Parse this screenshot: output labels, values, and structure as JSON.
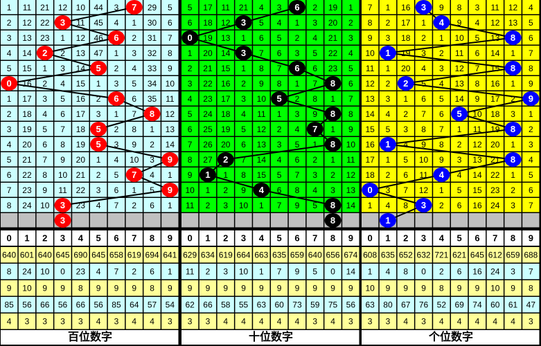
{
  "chart_data": {
    "type": "table",
    "digits": [
      "0",
      "1",
      "2",
      "3",
      "4",
      "5",
      "6",
      "7",
      "8",
      "9"
    ],
    "colors": {
      "gray_row": "#c0c0c0",
      "stat_yellow": "#ffff99",
      "stat_cyan": "#ccffff",
      "header_bg": "#ffffff",
      "line": "#000000"
    },
    "panels": [
      {
        "label": "百位数字",
        "bg": "#ccffff",
        "ball_color": "#ff0000",
        "rows": [
          {
            "cells": [
              "1",
              "11",
              "21",
              "12",
              "10",
              "44",
              "3",
              "",
              "29",
              "5"
            ],
            "ball": 7
          },
          {
            "cells": [
              "2",
              "12",
              "22",
              "",
              "11",
              "45",
              "4",
              "1",
              "30",
              "6"
            ],
            "ball": 3
          },
          {
            "cells": [
              "3",
              "13",
              "23",
              "1",
              "12",
              "46",
              "",
              "2",
              "31",
              "7"
            ],
            "ball": 6
          },
          {
            "cells": [
              "4",
              "14",
              "",
              "2",
              "13",
              "47",
              "1",
              "3",
              "32",
              "8"
            ],
            "ball": 2
          },
          {
            "cells": [
              "5",
              "15",
              "1",
              "3",
              "14",
              "",
              "2",
              "4",
              "33",
              "9"
            ],
            "ball": 5
          },
          {
            "cells": [
              "",
              "16",
              "2",
              "4",
              "15",
              "1",
              "3",
              "5",
              "34",
              "10"
            ],
            "ball": 0
          },
          {
            "cells": [
              "1",
              "17",
              "3",
              "5",
              "16",
              "2",
              "",
              "6",
              "35",
              "11"
            ],
            "ball": 6
          },
          {
            "cells": [
              "2",
              "18",
              "4",
              "6",
              "17",
              "3",
              "1",
              "7",
              "",
              "12"
            ],
            "ball": 8
          },
          {
            "cells": [
              "3",
              "19",
              "5",
              "7",
              "18",
              "",
              "2",
              "8",
              "1",
              "13"
            ],
            "ball": 5
          },
          {
            "cells": [
              "4",
              "20",
              "6",
              "8",
              "19",
              "",
              "3",
              "9",
              "2",
              "14"
            ],
            "ball": 5
          },
          {
            "cells": [
              "5",
              "21",
              "7",
              "9",
              "20",
              "1",
              "4",
              "10",
              "3",
              ""
            ],
            "ball": 9
          },
          {
            "cells": [
              "6",
              "22",
              "8",
              "10",
              "21",
              "2",
              "5",
              "",
              "4",
              "1"
            ],
            "ball": 7
          },
          {
            "cells": [
              "7",
              "23",
              "9",
              "11",
              "22",
              "3",
              "6",
              "1",
              "5",
              ""
            ],
            "ball": 9
          },
          {
            "cells": [
              "8",
              "24",
              "10",
              "",
              "23",
              "4",
              "7",
              "2",
              "6",
              "1"
            ],
            "ball": 3
          },
          {
            "cells": [
              "",
              "",
              "",
              "",
              "",
              "",
              "",
              "",
              "",
              ""
            ],
            "ball": 3
          }
        ],
        "stats": [
          [
            "640",
            "601",
            "640",
            "645",
            "690",
            "645",
            "658",
            "619",
            "694",
            "641"
          ],
          [
            "8",
            "24",
            "10",
            "0",
            "23",
            "4",
            "7",
            "2",
            "6",
            "1"
          ],
          [
            "9",
            "10",
            "9",
            "9",
            "8",
            "9",
            "9",
            "9",
            "8",
            "9"
          ],
          [
            "85",
            "56",
            "66",
            "56",
            "66",
            "56",
            "85",
            "64",
            "57",
            "54"
          ],
          [
            "4",
            "3",
            "3",
            "3",
            "3",
            "4",
            "3",
            "4",
            "4",
            "3"
          ]
        ]
      },
      {
        "label": "十位数字",
        "bg": "#00ff00",
        "ball_color": "#000000",
        "rows": [
          {
            "cells": [
              "5",
              "17",
              "11",
              "21",
              "4",
              "3",
              "",
              "2",
              "19",
              "1"
            ],
            "ball": 6
          },
          {
            "cells": [
              "6",
              "18",
              "12",
              "",
              "5",
              "4",
              "1",
              "3",
              "20",
              "2"
            ],
            "ball": 3
          },
          {
            "cells": [
              "",
              "19",
              "13",
              "1",
              "6",
              "5",
              "2",
              "4",
              "21",
              "3"
            ],
            "ball": 0
          },
          {
            "cells": [
              "1",
              "20",
              "14",
              "",
              "7",
              "6",
              "3",
              "5",
              "22",
              "4"
            ],
            "ball": 3
          },
          {
            "cells": [
              "2",
              "21",
              "15",
              "1",
              "8",
              "7",
              "",
              "6",
              "23",
              "5"
            ],
            "ball": 6
          },
          {
            "cells": [
              "3",
              "22",
              "16",
              "2",
              "9",
              "8",
              "1",
              "7",
              "",
              "6"
            ],
            "ball": 8
          },
          {
            "cells": [
              "4",
              "23",
              "17",
              "3",
              "10",
              "",
              "2",
              "8",
              "1",
              "7"
            ],
            "ball": 5
          },
          {
            "cells": [
              "5",
              "24",
              "18",
              "4",
              "11",
              "1",
              "3",
              "9",
              "",
              "8"
            ],
            "ball": 8
          },
          {
            "cells": [
              "6",
              "25",
              "19",
              "5",
              "12",
              "2",
              "4",
              "",
              "1",
              "9"
            ],
            "ball": 7
          },
          {
            "cells": [
              "7",
              "26",
              "20",
              "6",
              "13",
              "3",
              "5",
              "1",
              "",
              "10"
            ],
            "ball": 8
          },
          {
            "cells": [
              "8",
              "27",
              "",
              "7",
              "14",
              "4",
              "6",
              "2",
              "1",
              "11"
            ],
            "ball": 2
          },
          {
            "cells": [
              "9",
              "",
              "1",
              "8",
              "15",
              "5",
              "7",
              "3",
              "2",
              "12"
            ],
            "ball": 1
          },
          {
            "cells": [
              "10",
              "1",
              "2",
              "9",
              "",
              "6",
              "8",
              "4",
              "3",
              "13"
            ],
            "ball": 4
          },
          {
            "cells": [
              "11",
              "2",
              "3",
              "10",
              "1",
              "7",
              "9",
              "5",
              "",
              "14"
            ],
            "ball": 8
          },
          {
            "cells": [
              "",
              "",
              "",
              "",
              "",
              "",
              "",
              "",
              "",
              ""
            ],
            "ball": 8
          }
        ],
        "stats": [
          [
            "629",
            "634",
            "619",
            "664",
            "663",
            "635",
            "659",
            "640",
            "656",
            "674"
          ],
          [
            "11",
            "2",
            "3",
            "10",
            "1",
            "7",
            "9",
            "5",
            "0",
            "14"
          ],
          [
            "9",
            "9",
            "9",
            "9",
            "9",
            "9",
            "9",
            "9",
            "9",
            "9"
          ],
          [
            "62",
            "66",
            "58",
            "55",
            "63",
            "60",
            "73",
            "59",
            "75",
            "56"
          ],
          [
            "3",
            "3",
            "4",
            "4",
            "4",
            "4",
            "4",
            "3",
            "4",
            "3"
          ]
        ]
      },
      {
        "label": "个位数字",
        "bg": "#ffff00",
        "ball_color": "#0000ff",
        "rows": [
          {
            "cells": [
              "7",
              "1",
              "16",
              "",
              "9",
              "8",
              "3",
              "11",
              "12",
              "4"
            ],
            "ball": 3
          },
          {
            "cells": [
              "8",
              "2",
              "17",
              "1",
              "",
              "9",
              "4",
              "12",
              "13",
              "5"
            ],
            "ball": 4
          },
          {
            "cells": [
              "9",
              "3",
              "18",
              "2",
              "1",
              "10",
              "5",
              "13",
              "",
              "6"
            ],
            "ball": 8
          },
          {
            "cells": [
              "10",
              "",
              "19",
              "3",
              "2",
              "11",
              "6",
              "14",
              "1",
              "7"
            ],
            "ball": 1
          },
          {
            "cells": [
              "11",
              "1",
              "20",
              "4",
              "3",
              "12",
              "7",
              "15",
              "",
              "8"
            ],
            "ball": 8
          },
          {
            "cells": [
              "12",
              "2",
              "",
              "5",
              "4",
              "13",
              "8",
              "16",
              "1",
              "9"
            ],
            "ball": 2
          },
          {
            "cells": [
              "13",
              "3",
              "1",
              "6",
              "5",
              "14",
              "9",
              "17",
              "2",
              ""
            ],
            "ball": 9
          },
          {
            "cells": [
              "14",
              "4",
              "2",
              "7",
              "6",
              "",
              "10",
              "18",
              "3",
              "1"
            ],
            "ball": 5
          },
          {
            "cells": [
              "15",
              "5",
              "3",
              "8",
              "7",
              "1",
              "11",
              "19",
              "",
              "2"
            ],
            "ball": 8
          },
          {
            "cells": [
              "16",
              "",
              "4",
              "9",
              "8",
              "2",
              "12",
              "20",
              "1",
              "3"
            ],
            "ball": 1
          },
          {
            "cells": [
              "17",
              "1",
              "5",
              "10",
              "9",
              "3",
              "13",
              "21",
              "",
              "4"
            ],
            "ball": 8
          },
          {
            "cells": [
              "18",
              "2",
              "6",
              "11",
              "",
              "4",
              "14",
              "22",
              "1",
              "5"
            ],
            "ball": 4
          },
          {
            "cells": [
              "",
              "3",
              "7",
              "12",
              "1",
              "5",
              "15",
              "23",
              "2",
              "6"
            ],
            "ball": 0
          },
          {
            "cells": [
              "1",
              "4",
              "8",
              "",
              "2",
              "6",
              "16",
              "24",
              "3",
              "7"
            ],
            "ball": 3
          },
          {
            "cells": [
              "",
              "",
              "",
              "",
              "",
              "",
              "",
              "",
              "",
              ""
            ],
            "ball": 1
          }
        ],
        "stats": [
          [
            "608",
            "635",
            "652",
            "632",
            "721",
            "621",
            "645",
            "612",
            "659",
            "688"
          ],
          [
            "1",
            "4",
            "8",
            "0",
            "2",
            "6",
            "16",
            "24",
            "3",
            "7"
          ],
          [
            "10",
            "9",
            "9",
            "9",
            "8",
            "9",
            "9",
            "10",
            "9",
            "8"
          ],
          [
            "63",
            "80",
            "67",
            "76",
            "52",
            "69",
            "74",
            "60",
            "61",
            "47"
          ],
          [
            "3",
            "3",
            "4",
            "3",
            "4",
            "4",
            "4",
            "4",
            "4",
            "3"
          ]
        ]
      }
    ]
  }
}
